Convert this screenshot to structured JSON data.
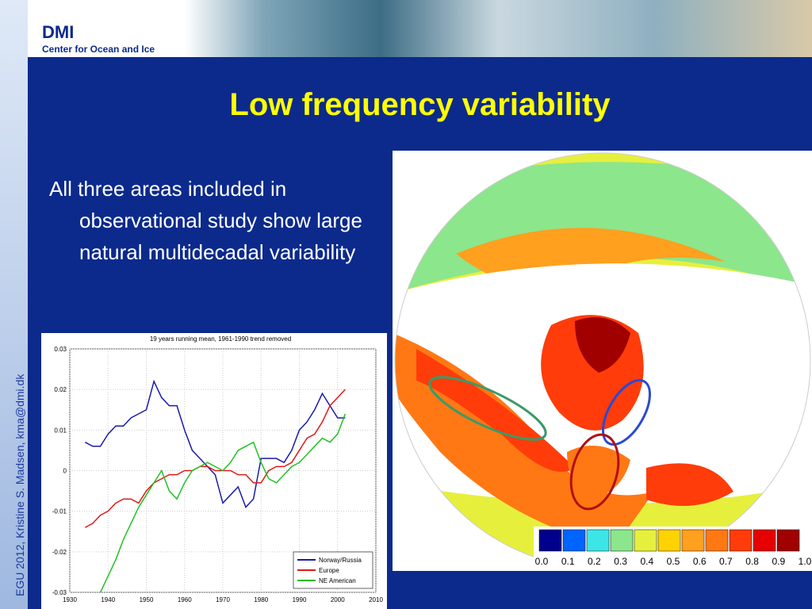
{
  "header": {
    "logo": "DMI",
    "subtitle": "Center for Ocean and Ice"
  },
  "title": "Low frequency variability",
  "bullet": "All three areas included in observational study show large natural multidecadal variability",
  "side_text": "EGU 2012, Kristine S. Madsen, kma@dmi.dk",
  "chart_data": {
    "type": "line",
    "title": "19 years running mean, 1961-1990 trend removed",
    "x": [
      1934,
      1936,
      1938,
      1940,
      1942,
      1944,
      1946,
      1948,
      1950,
      1952,
      1954,
      1956,
      1958,
      1960,
      1962,
      1964,
      1966,
      1968,
      1970,
      1972,
      1974,
      1976,
      1978,
      1980,
      1982,
      1984,
      1986,
      1988,
      1990,
      1992,
      1994,
      1996,
      1998,
      2000,
      2002
    ],
    "series": [
      {
        "name": "Norway/Russia",
        "color": "#1a1aa8",
        "values": [
          0.007,
          0.006,
          0.006,
          0.009,
          0.011,
          0.011,
          0.013,
          0.014,
          0.015,
          0.022,
          0.018,
          0.016,
          0.016,
          0.01,
          0.005,
          0.003,
          0.001,
          -0.001,
          -0.008,
          -0.006,
          -0.004,
          -0.009,
          -0.007,
          0.003,
          0.003,
          0.003,
          0.002,
          0.005,
          0.01,
          0.012,
          0.015,
          0.019,
          0.016,
          0.013,
          0.013
        ]
      },
      {
        "name": "Europe",
        "color": "#e01818",
        "values": [
          -0.014,
          -0.013,
          -0.011,
          -0.01,
          -0.008,
          -0.007,
          -0.007,
          -0.008,
          -0.005,
          -0.003,
          -0.002,
          -0.001,
          -0.001,
          0.0,
          0.0,
          0.001,
          0.001,
          0.0,
          0.0,
          0.0,
          -0.001,
          -0.001,
          -0.003,
          -0.003,
          0.0,
          0.001,
          0.001,
          0.002,
          0.005,
          0.008,
          0.009,
          0.012,
          0.016,
          0.018,
          0.02
        ]
      },
      {
        "name": "NE American",
        "color": "#22c022",
        "values": [
          null,
          null,
          -0.03,
          -0.026,
          -0.022,
          -0.017,
          -0.013,
          -0.009,
          -0.006,
          -0.003,
          0.0,
          -0.005,
          -0.007,
          -0.003,
          0.0,
          0.001,
          0.002,
          0.001,
          0.0,
          0.002,
          0.005,
          0.006,
          0.007,
          0.002,
          -0.002,
          -0.003,
          -0.001,
          0.001,
          0.002,
          0.004,
          0.006,
          0.008,
          0.007,
          0.009,
          0.014
        ]
      }
    ],
    "xlim": [
      1930,
      2010
    ],
    "xticks": [
      1930,
      1940,
      1950,
      1960,
      1970,
      1980,
      1990,
      2000,
      2010
    ],
    "ylim": [
      -0.03,
      0.03
    ],
    "yticks": [
      0.03,
      0.02,
      0.01,
      0,
      -0.01,
      -0.02,
      -0.03
    ],
    "legend": "lower right"
  },
  "map": {
    "colorbar": {
      "colors": [
        "#00008c",
        "#0064ff",
        "#3ce6e6",
        "#8ce68c",
        "#e6f03c",
        "#ffd200",
        "#ffa01e",
        "#ff7814",
        "#ff3c0a",
        "#e60000",
        "#a00000"
      ],
      "ticks": [
        {
          "value": 0,
          "label": "0.0"
        },
        {
          "value": 0.1,
          "label": "0.1"
        },
        {
          "value": 0.2,
          "label": "0.2"
        },
        {
          "value": 0.3,
          "label": "0.3"
        },
        {
          "value": 0.4,
          "label": "0.4"
        },
        {
          "value": 0.5,
          "label": "0.5"
        },
        {
          "value": 0.6,
          "label": "0.6"
        },
        {
          "value": 0.7,
          "label": "0.7"
        },
        {
          "value": 0.8,
          "label": "0.8"
        },
        {
          "value": 0.9,
          "label": "0.9"
        },
        {
          "value": 1,
          "label": "1.0"
        }
      ]
    }
  }
}
